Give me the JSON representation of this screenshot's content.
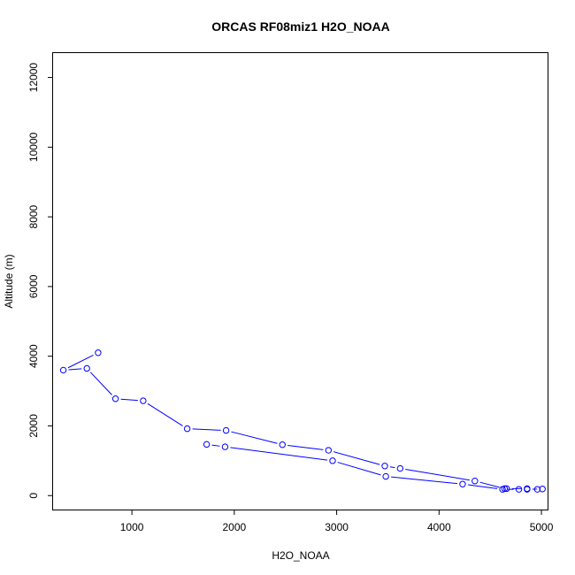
{
  "chart_data": {
    "type": "line",
    "title": "ORCAS RF08miz1 H2O_NOAA",
    "xlabel": "H2O_NOAA",
    "ylabel": "Altitude (m)",
    "xlim": [
      230,
      5060
    ],
    "ylim": [
      -400,
      12700
    ],
    "xticks": [
      1000,
      2000,
      3000,
      4000,
      5000
    ],
    "yticks": [
      0,
      2000,
      4000,
      6000,
      8000,
      10000,
      12000
    ],
    "grid": false,
    "legend": "none",
    "series_color": "#0000ff",
    "series": [
      {
        "marker": "open-circle",
        "x": [
          670,
          330,
          560,
          840,
          1110,
          1540,
          1920,
          2470,
          2920,
          3470,
          3620,
          4350,
          4640,
          4660,
          4860,
          4960,
          5010,
          4860,
          4780,
          4620,
          4230,
          3480,
          2960,
          1910,
          1730
        ],
        "y": [
          4100,
          3600,
          3650,
          2780,
          2720,
          1920,
          1870,
          1460,
          1300,
          850,
          780,
          420,
          200,
          200,
          200,
          180,
          190,
          180,
          180,
          180,
          330,
          550,
          1000,
          1400,
          1470
        ]
      }
    ]
  }
}
